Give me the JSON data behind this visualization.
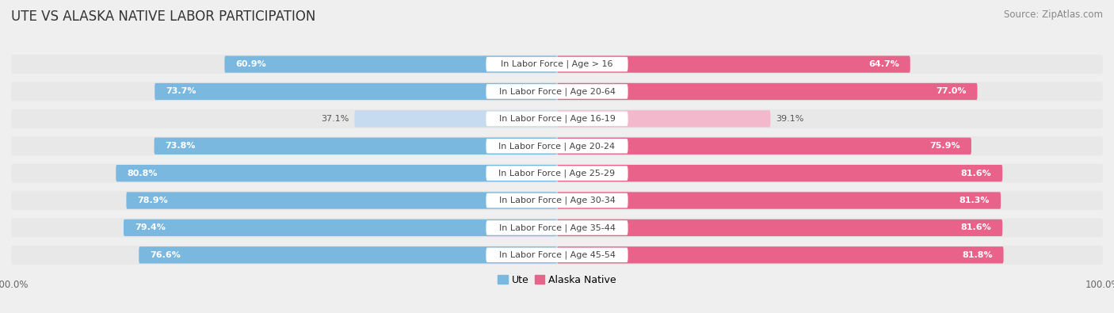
{
  "title": "UTE VS ALASKA NATIVE LABOR PARTICIPATION",
  "source": "Source: ZipAtlas.com",
  "categories": [
    "In Labor Force | Age > 16",
    "In Labor Force | Age 20-64",
    "In Labor Force | Age 16-19",
    "In Labor Force | Age 20-24",
    "In Labor Force | Age 25-29",
    "In Labor Force | Age 30-34",
    "In Labor Force | Age 35-44",
    "In Labor Force | Age 45-54"
  ],
  "ute_values": [
    60.9,
    73.7,
    37.1,
    73.8,
    80.8,
    78.9,
    79.4,
    76.6
  ],
  "alaska_values": [
    64.7,
    77.0,
    39.1,
    75.9,
    81.6,
    81.3,
    81.6,
    81.8
  ],
  "ute_color_full": "#7ab8e0",
  "ute_color_light": "#c6dbef",
  "alaska_color_full": "#e8628a",
  "alaska_color_light": "#f4b8cc",
  "row_bg_color": "#e8e8e8",
  "bar_bg_color": "#ffffff",
  "bg_color": "#efefef",
  "bar_height": 0.62,
  "max_value": 100.0,
  "title_fontsize": 12,
  "label_fontsize": 8,
  "value_fontsize": 8,
  "source_fontsize": 8.5,
  "legend_fontsize": 9,
  "light_rows": [
    2
  ]
}
